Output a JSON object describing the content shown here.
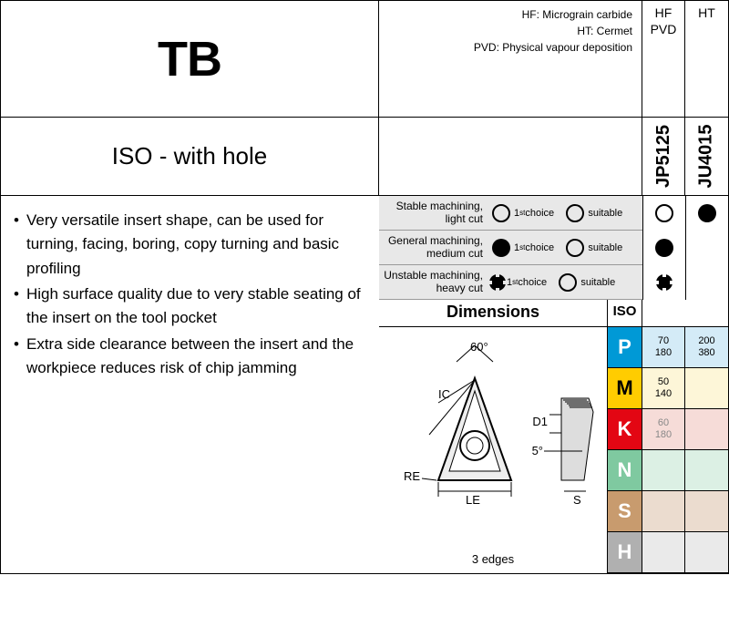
{
  "title": "TB",
  "subtitle": "ISO - with hole",
  "legend": {
    "l1": "HF: Micrograin carbide",
    "l2": "HT: Cermet",
    "l3": "PVD: Physical vapour deposition"
  },
  "cols": [
    {
      "l1": "HF",
      "l2": "PVD",
      "code": "JP5125"
    },
    {
      "l1": "HT",
      "l2": "",
      "code": "JU4015"
    }
  ],
  "bullets": [
    "Very versatile insert shape, can be used for turning, facing, boring, copy turning and basic profiling",
    "High surface quality due to very stable seating of the insert on the tool pocket",
    "Extra side clearance between the insert and the workpiece reduces risk of chip jamming"
  ],
  "mach": [
    {
      "l1": "Stable machining,",
      "l2": "light cut",
      "c1": "ring",
      "c2": "fill"
    },
    {
      "l1": "General machining,",
      "l2": "medium cut",
      "c1": "fill",
      "c2": ""
    },
    {
      "l1": "Unstable machining,",
      "l2": "heavy cut",
      "c1": "cross",
      "c2": ""
    }
  ],
  "choice": "1",
  "choice_sup": "st",
  "choice_lbl": " choice",
  "suit": "suitable",
  "dim_title": "Dimensions",
  "iso_title": "ISO",
  "edges": "3 edges",
  "diag": {
    "angle": "60°",
    "ic": "IC",
    "re": "RE",
    "le": "LE",
    "d1": "D1",
    "ang2": "5°",
    "s": "S"
  },
  "iso": [
    {
      "k": "P",
      "cls": "P",
      "bcls": "bP",
      "v": [
        [
          "70",
          "180"
        ],
        [
          "200",
          "380"
        ]
      ]
    },
    {
      "k": "M",
      "cls": "M",
      "bcls": "bM",
      "v": [
        [
          "50",
          "140"
        ],
        [
          "",
          ""
        ]
      ]
    },
    {
      "k": "K",
      "cls": "K",
      "bcls": "bK",
      "v": [
        [
          "60",
          "180",
          "light"
        ],
        [
          "",
          ""
        ]
      ]
    },
    {
      "k": "N",
      "cls": "N",
      "bcls": "bN",
      "v": [
        [
          "",
          ""
        ],
        [
          "",
          ""
        ]
      ]
    },
    {
      "k": "S",
      "cls": "S",
      "bcls": "bS",
      "v": [
        [
          "",
          ""
        ],
        [
          "",
          ""
        ]
      ]
    },
    {
      "k": "H",
      "cls": "H",
      "bcls": "bH",
      "v": [
        [
          "",
          ""
        ],
        [
          "",
          ""
        ]
      ]
    }
  ]
}
